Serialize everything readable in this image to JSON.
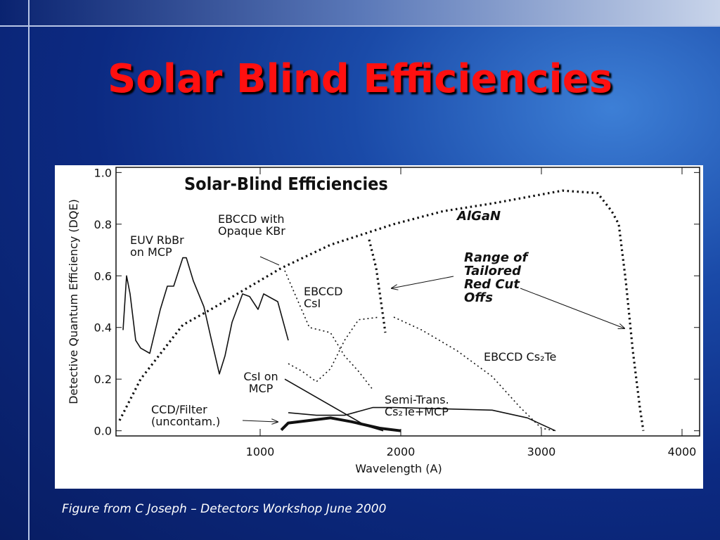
{
  "slide": {
    "title": "Solar Blind Efficiencies",
    "caption": "Figure from C Joseph – Detectors Workshop June 2000"
  },
  "chart_data": {
    "type": "line",
    "title": "Solar-Blind Efficiencies",
    "x_label": "Wavelength (A)",
    "y_label": "Detective Quantum Efficiency (DQE)",
    "xlim": [
      -25,
      4125
    ],
    "ylim": [
      -0.02,
      1.02
    ],
    "xticks": [
      1000,
      2000,
      3000,
      4000
    ],
    "yticks": [
      {
        "value": 0,
        "label": "0.0"
      },
      0.2,
      0.4,
      0.6,
      0.8,
      {
        "value": 1,
        "label": "1.0"
      }
    ],
    "annotations": [
      "Range of Tailored Red Cut Offs"
    ],
    "series": [
      {
        "name": "EUV RbBr on MCP",
        "color": "#111111",
        "style": "solid",
        "x": [
          25,
          50,
          75,
          115,
          150,
          215,
          290,
          340,
          385,
          450,
          475,
          525,
          600,
          650,
          710,
          750,
          800,
          875,
          925,
          985,
          1025,
          1125,
          1200
        ],
        "values": [
          0.39,
          0.6,
          0.53,
          0.35,
          0.32,
          0.3,
          0.47,
          0.56,
          0.56,
          0.67,
          0.67,
          0.58,
          0.48,
          0.36,
          0.22,
          0.29,
          0.42,
          0.53,
          0.52,
          0.47,
          0.53,
          0.5,
          0.35
        ]
      },
      {
        "name": "EBCCD with Opaque KBr",
        "color": "#111111",
        "style": "dotted",
        "x": [
          1175,
          1350,
          1500,
          1600,
          1700,
          1800
        ],
        "values": [
          0.62,
          0.4,
          0.38,
          0.29,
          0.23,
          0.16
        ]
      },
      {
        "name": "EBCCD CsI",
        "color": "#111111",
        "style": "dotted",
        "x": [
          1200,
          1300,
          1400,
          1500,
          1600,
          1700,
          1850
        ],
        "values": [
          0.26,
          0.23,
          0.19,
          0.24,
          0.35,
          0.43,
          0.44
        ]
      },
      {
        "name": "EBCCD Cs₂Te",
        "color": "#111111",
        "style": "dotted",
        "x": [
          1950,
          2150,
          2400,
          2650,
          2850,
          3000,
          3100
        ],
        "values": [
          0.44,
          0.39,
          0.31,
          0.21,
          0.09,
          0.01,
          0
        ]
      },
      {
        "name": "CsI on MCP",
        "color": "#111111",
        "style": "solid",
        "x": [
          1175,
          1750,
          1875
        ],
        "values": [
          0.2,
          0.02,
          0
        ]
      },
      {
        "name": "Semi-Trans. Cs₂Te+MCP",
        "color": "#111111",
        "style": "solid",
        "x": [
          1200,
          1400,
          1600,
          1800,
          1950,
          2650,
          2900,
          3100
        ],
        "values": [
          0.07,
          0.06,
          0.06,
          0.09,
          0.09,
          0.08,
          0.05,
          0
        ]
      },
      {
        "name": "CCD/Filter (uncontam.)",
        "color": "#111111",
        "style": "thick",
        "x": [
          1150,
          1200,
          1350,
          1500,
          1650,
          1850,
          2000
        ],
        "values": [
          0.003,
          0.03,
          0.04,
          0.05,
          0.035,
          0.01,
          0
        ]
      },
      {
        "name": "AlGaN",
        "color": "#111111",
        "style": "bold-dotted",
        "x": [
          0,
          150,
          450,
          650,
          1150,
          1500,
          1950,
          2300,
          2650,
          3150,
          3400,
          3500,
          3550,
          3600,
          3650,
          3700,
          3725
        ],
        "values": [
          0.04,
          0.2,
          0.41,
          0.47,
          0.63,
          0.72,
          0.8,
          0.85,
          0.88,
          0.93,
          0.92,
          0.85,
          0.8,
          0.58,
          0.31,
          0.09,
          0
        ]
      },
      {
        "color": "#111111",
        "style": "bold-dotted",
        "x": [
          1775,
          1825,
          1875,
          1890
        ],
        "values": [
          0.74,
          0.63,
          0.44,
          0.38
        ]
      }
    ]
  }
}
